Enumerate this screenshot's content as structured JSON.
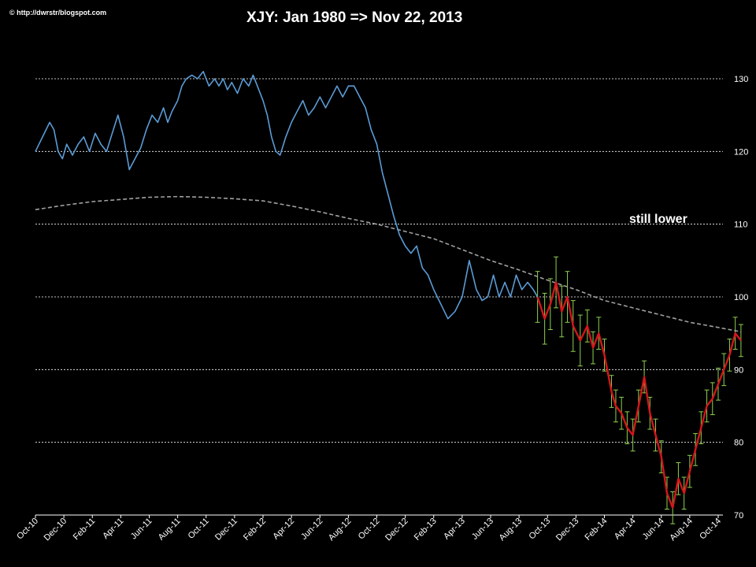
{
  "header": {
    "copyright": "© http://dwrstr/blogspot.com",
    "title": "XJY: Jan 1980  => Nov 22, 2013"
  },
  "annotations": {
    "still_lower": "still lower"
  },
  "colors": {
    "background": "#000000",
    "actual_line": "#5b9bd5",
    "projection_line": "#d4161b",
    "projection_band": "#8fd14f",
    "trend_line": "#a0a0a0",
    "grid": "#ffffff"
  },
  "chart_data": {
    "type": "line",
    "title": "XJY: Jan 1980  => Nov 22, 2013",
    "x_ticks": [
      "Oct-10",
      "Dec-10",
      "Feb-11",
      "Apr-11",
      "Jun-11",
      "Aug-11",
      "Oct-11",
      "Dec-11",
      "Feb-12",
      "Apr-12",
      "Jun-12",
      "Aug-12",
      "Oct-12",
      "Dec-12",
      "Feb-13",
      "Apr-13",
      "Jun-13",
      "Aug-13",
      "Oct-13",
      "Dec-13",
      "Feb-14",
      "Apr-14",
      "Jun-14",
      "Aug-14",
      "Oct-14"
    ],
    "y_ticks": [
      70,
      80,
      90,
      100,
      110,
      120,
      130
    ],
    "ylim": [
      70,
      130
    ],
    "grid": "horizontal dashed",
    "y_axis_position": "right",
    "series": [
      {
        "values": [
          [
            0,
            120
          ],
          [
            0.5,
            122
          ],
          [
            1,
            124
          ],
          [
            1.3,
            123
          ],
          [
            1.6,
            120
          ],
          [
            1.9,
            119
          ],
          [
            2.2,
            121
          ],
          [
            2.6,
            119.5
          ],
          [
            3,
            121
          ],
          [
            3.4,
            122
          ],
          [
            3.8,
            120
          ],
          [
            4.2,
            122.5
          ],
          [
            4.6,
            121
          ],
          [
            5,
            120
          ],
          [
            5.4,
            122.5
          ],
          [
            5.8,
            125
          ],
          [
            6.2,
            122
          ],
          [
            6.6,
            117.5
          ],
          [
            7,
            119
          ],
          [
            7.4,
            120.5
          ],
          [
            7.8,
            123
          ],
          [
            8.2,
            125
          ],
          [
            8.6,
            124
          ],
          [
            9,
            126
          ],
          [
            9.3,
            124
          ],
          [
            9.6,
            125.5
          ],
          [
            10,
            127
          ],
          [
            10.3,
            129
          ],
          [
            10.6,
            130
          ],
          [
            11,
            130.5
          ],
          [
            11.4,
            130
          ],
          [
            11.8,
            131
          ],
          [
            12.2,
            129
          ],
          [
            12.6,
            130
          ],
          [
            12.9,
            129
          ],
          [
            13.2,
            130
          ],
          [
            13.5,
            128.5
          ],
          [
            13.8,
            129.5
          ],
          [
            14.2,
            128
          ],
          [
            14.6,
            130
          ],
          [
            15,
            129
          ],
          [
            15.3,
            130.5
          ],
          [
            15.6,
            129
          ],
          [
            16,
            127
          ],
          [
            16.3,
            125
          ],
          [
            16.6,
            122
          ],
          [
            16.9,
            120
          ],
          [
            17.2,
            119.5
          ],
          [
            17.6,
            122
          ],
          [
            18,
            124
          ],
          [
            18.4,
            125.5
          ],
          [
            18.8,
            127
          ],
          [
            19.2,
            125
          ],
          [
            19.6,
            126
          ],
          [
            20,
            127.5
          ],
          [
            20.4,
            126
          ],
          [
            20.8,
            127.5
          ],
          [
            21.2,
            129
          ],
          [
            21.6,
            127.5
          ],
          [
            22,
            129
          ],
          [
            22.4,
            129
          ],
          [
            22.8,
            127.5
          ],
          [
            23.2,
            126
          ],
          [
            23.6,
            123
          ],
          [
            24,
            121
          ],
          [
            24.4,
            117
          ],
          [
            24.8,
            114
          ],
          [
            25.2,
            111
          ],
          [
            25.6,
            108.5
          ],
          [
            26,
            107
          ],
          [
            26.4,
            106
          ],
          [
            26.8,
            107
          ],
          [
            27.2,
            104
          ],
          [
            27.6,
            103
          ],
          [
            28,
            101
          ],
          [
            28.5,
            99
          ],
          [
            29,
            97
          ],
          [
            29.5,
            98
          ],
          [
            30,
            100
          ],
          [
            30.5,
            105
          ],
          [
            31,
            101
          ],
          [
            31.4,
            99.5
          ],
          [
            31.8,
            100
          ],
          [
            32.2,
            103
          ],
          [
            32.6,
            100
          ],
          [
            33,
            102
          ],
          [
            33.4,
            100
          ],
          [
            33.8,
            103
          ],
          [
            34.2,
            101
          ],
          [
            34.6,
            102
          ],
          [
            35,
            101
          ],
          [
            35.3,
            100
          ]
        ]
      },
      {
        "values": [
          [
            35.3,
            100
          ],
          [
            35.8,
            97
          ],
          [
            36.2,
            99
          ],
          [
            36.6,
            102
          ],
          [
            37,
            98
          ],
          [
            37.4,
            100
          ],
          [
            37.8,
            96
          ],
          [
            38.3,
            94
          ],
          [
            38.8,
            96
          ],
          [
            39.2,
            93
          ],
          [
            39.6,
            95
          ],
          [
            40,
            92
          ],
          [
            40.5,
            87
          ],
          [
            40.8,
            85
          ],
          [
            41.2,
            84
          ],
          [
            41.6,
            82
          ],
          [
            42,
            81
          ],
          [
            42.4,
            85
          ],
          [
            42.8,
            89
          ],
          [
            43.2,
            84
          ],
          [
            43.6,
            81
          ],
          [
            44,
            78
          ],
          [
            44.4,
            73
          ],
          [
            44.8,
            71
          ],
          [
            45.2,
            75
          ],
          [
            45.6,
            73
          ],
          [
            46,
            76
          ],
          [
            46.4,
            79
          ],
          [
            46.8,
            82
          ],
          [
            47.2,
            85
          ],
          [
            47.6,
            86
          ],
          [
            48,
            88
          ],
          [
            48.4,
            90
          ],
          [
            48.8,
            92
          ],
          [
            49.2,
            95
          ],
          [
            49.6,
            94
          ]
        ]
      },
      {
        "values": [
          [
            0,
            112
          ],
          [
            2,
            112.6
          ],
          [
            4,
            113.1
          ],
          [
            6,
            113.4
          ],
          [
            8,
            113.7
          ],
          [
            10,
            113.8
          ],
          [
            12,
            113.7
          ],
          [
            14,
            113.5
          ],
          [
            16,
            113.2
          ],
          [
            18,
            112.5
          ],
          [
            20,
            111.7
          ],
          [
            22,
            110.8
          ],
          [
            24,
            110
          ],
          [
            26,
            109
          ],
          [
            28,
            108
          ],
          [
            30,
            106.5
          ],
          [
            32,
            105
          ],
          [
            34,
            103.7
          ],
          [
            36,
            102.3
          ],
          [
            38,
            101
          ],
          [
            40,
            99.5
          ],
          [
            42,
            98.5
          ],
          [
            44,
            97.5
          ],
          [
            46,
            96.5
          ],
          [
            48,
            95.8
          ],
          [
            49.6,
            95.2
          ]
        ]
      }
    ]
  }
}
